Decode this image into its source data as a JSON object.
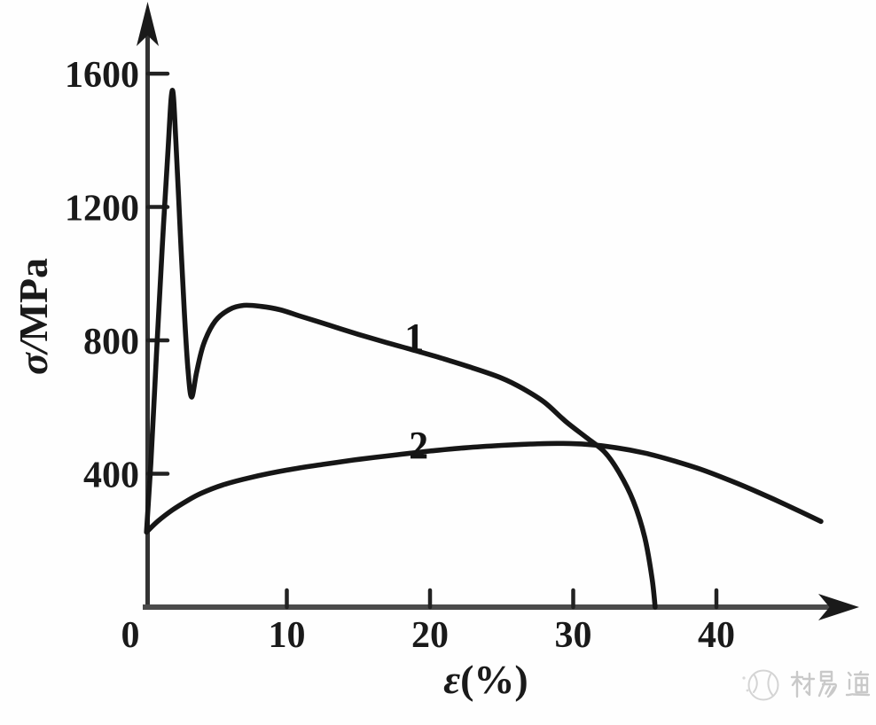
{
  "figure": {
    "background_color": "#fefefe",
    "ink_color": "#1a1a1a",
    "watermark": {
      "logo": "crumpled-globe-icon",
      "text": "材易通",
      "color": "#c9c9c9"
    }
  },
  "chart_data": {
    "type": "line",
    "title": "",
    "xlabel": "ε(%)",
    "xlabel_parts": {
      "symbol": "ε",
      "rest": "(%)"
    },
    "ylabel": "σ/MPa",
    "ylabel_parts": {
      "symbol": "σ/",
      "unit": "MPa"
    },
    "xlim": [
      0,
      50
    ],
    "ylim": [
      0,
      1800
    ],
    "x_ticks": [
      0,
      10,
      20,
      30,
      40
    ],
    "y_ticks": [
      400,
      800,
      1200,
      1600
    ],
    "grid": false,
    "axis_arrows": true,
    "legend_position": "none",
    "series": [
      {
        "name": "1",
        "label_at": [
          18.9,
          811
        ],
        "points": [
          [
            0.2,
            225
          ],
          [
            0.5,
            430
          ],
          [
            0.9,
            760
          ],
          [
            1.3,
            1080
          ],
          [
            1.7,
            1370
          ],
          [
            2.0,
            1550
          ],
          [
            2.25,
            1400
          ],
          [
            2.55,
            1130
          ],
          [
            2.85,
            880
          ],
          [
            3.1,
            710
          ],
          [
            3.35,
            630
          ],
          [
            3.7,
            705
          ],
          [
            4.2,
            790
          ],
          [
            5.0,
            858
          ],
          [
            6.0,
            893
          ],
          [
            7.0,
            905
          ],
          [
            8.2,
            902
          ],
          [
            9.5,
            892
          ],
          [
            11,
            872
          ],
          [
            13,
            845
          ],
          [
            15,
            818
          ],
          [
            17,
            793
          ],
          [
            19,
            769
          ],
          [
            21,
            744
          ],
          [
            23,
            717
          ],
          [
            25,
            687
          ],
          [
            26.5,
            655
          ],
          [
            28,
            614
          ],
          [
            29.5,
            556
          ],
          [
            31,
            506
          ],
          [
            32.2,
            465
          ],
          [
            33.2,
            404
          ],
          [
            34.2,
            318
          ],
          [
            35.0,
            208
          ],
          [
            35.5,
            88
          ],
          [
            35.72,
            0
          ]
        ]
      },
      {
        "name": "2",
        "label_at": [
          19.2,
          486
        ],
        "points": [
          [
            0.2,
            225
          ],
          [
            1,
            258
          ],
          [
            2,
            291
          ],
          [
            3,
            318
          ],
          [
            4,
            341
          ],
          [
            5.5,
            366
          ],
          [
            7.5,
            389
          ],
          [
            10,
            411
          ],
          [
            12.5,
            428
          ],
          [
            15,
            443
          ],
          [
            17.5,
            456
          ],
          [
            20,
            468
          ],
          [
            22.5,
            478
          ],
          [
            25,
            485
          ],
          [
            27,
            489
          ],
          [
            29,
            491
          ],
          [
            31,
            488
          ],
          [
            33,
            478
          ],
          [
            35,
            462
          ],
          [
            37,
            439
          ],
          [
            39,
            412
          ],
          [
            41,
            379
          ],
          [
            43,
            343
          ],
          [
            45,
            304
          ],
          [
            47.3,
            257
          ]
        ]
      }
    ]
  }
}
